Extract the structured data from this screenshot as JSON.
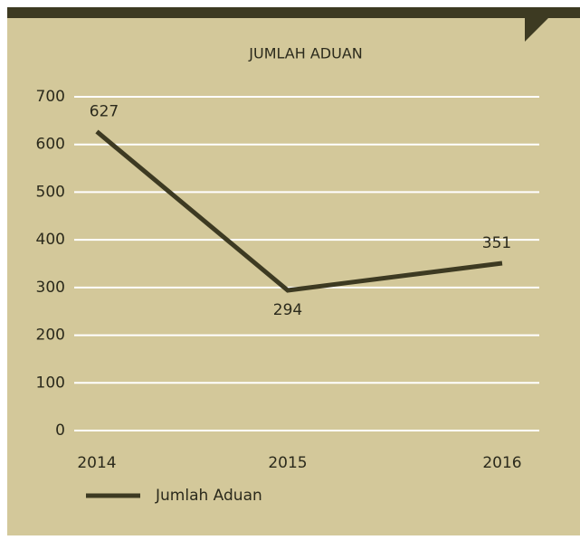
{
  "chart_data": {
    "type": "line",
    "title": "JUMLAH ADUAN",
    "categories": [
      "2014",
      "2015",
      "2016"
    ],
    "series": [
      {
        "name": "Jumlah Aduan",
        "color": "#3d3a22",
        "values": [
          627,
          294,
          351
        ]
      }
    ],
    "ylim": [
      0,
      700
    ],
    "yticks": [
      0,
      100,
      200,
      300,
      400,
      500,
      600,
      700
    ],
    "grid": true,
    "legend": "bottom-left"
  }
}
